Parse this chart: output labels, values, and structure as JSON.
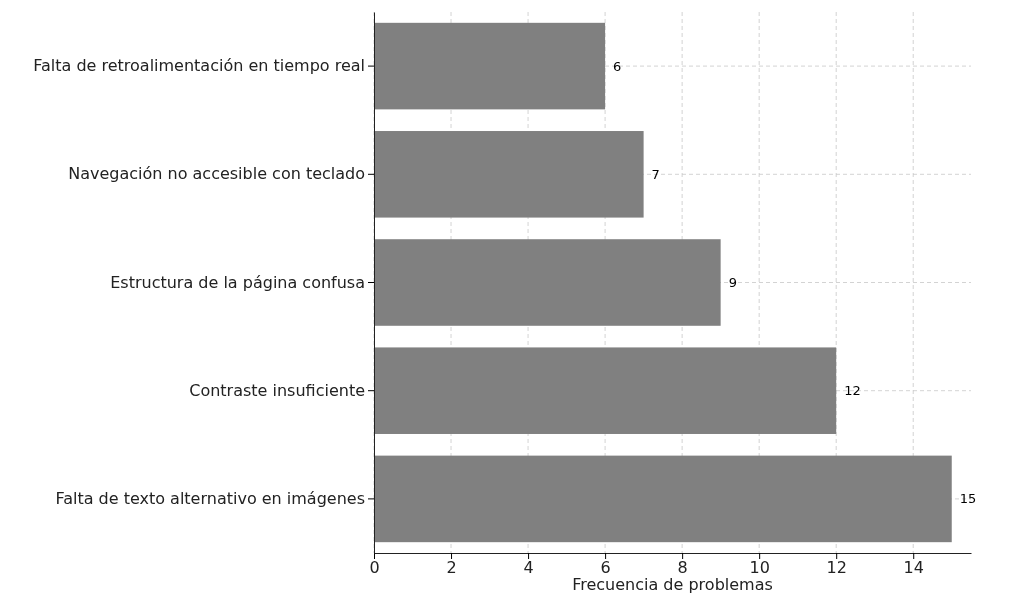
{
  "chart_data": {
    "type": "bar",
    "orientation": "horizontal",
    "categories": [
      "Falta de retroalimentación en tiempo real",
      "Navegación no accesible con teclado",
      "Estructura de la página confusa",
      "Contraste insuficiente",
      "Falta de texto alternativo en imágenes"
    ],
    "values": [
      6,
      7,
      9,
      12,
      15
    ],
    "color": "#808080",
    "xlabel": "Frecuencia de problemas",
    "xlim": [
      0,
      15.5
    ],
    "xticks": [
      0,
      2,
      4,
      6,
      8,
      10,
      12,
      14
    ],
    "grid": true,
    "data_labels": true
  }
}
